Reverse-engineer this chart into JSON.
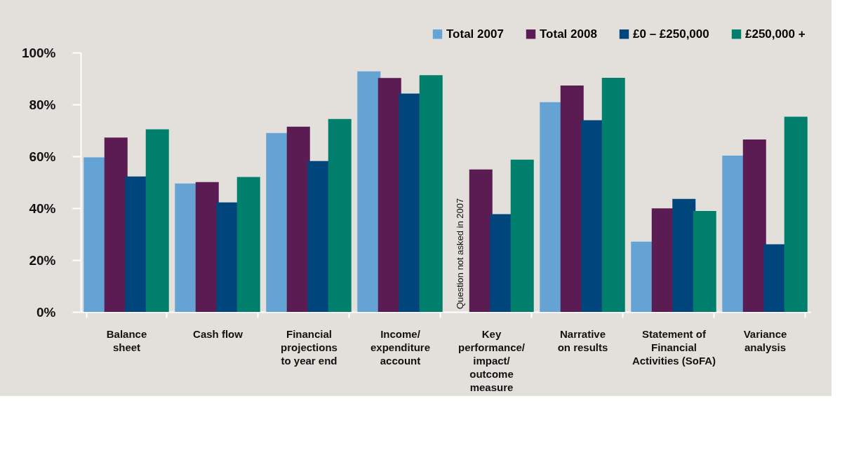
{
  "chart_data": {
    "type": "bar",
    "categories": [
      "Balance\nsheet",
      "Cash flow",
      "Financial\nprojections\nto year end",
      "Income/\nexpenditure\naccount",
      "Key\nperformance/\nimpact/\noutcome\nmeasure",
      "Narrative\non results",
      "Statement of\nFinancial\nActivities (SoFA)",
      "Variance\nanalysis"
    ],
    "series": [
      {
        "name": "Total 2007",
        "color": "#65a3d4",
        "values": [
          59.6,
          49.5,
          69.0,
          92.8,
          null,
          80.9,
          27.1,
          60.3
        ]
      },
      {
        "name": "Total 2008",
        "color": "#5a1c53",
        "values": [
          67.2,
          50.1,
          71.4,
          90.2,
          54.9,
          87.3,
          39.9,
          66.5
        ]
      },
      {
        "name": "£0 – £250,000",
        "color": "#00457c",
        "values": [
          52.2,
          42.2,
          58.2,
          84.2,
          37.7,
          73.9,
          43.6,
          26.1
        ]
      },
      {
        "name": "£250,000 +",
        "color": "#007f6d",
        "values": [
          70.4,
          52.0,
          74.4,
          91.3,
          58.7,
          90.3,
          38.9,
          75.3
        ]
      }
    ],
    "ylim": [
      0,
      100
    ],
    "yticks": [
      {
        "value": 0,
        "label": "0%"
      },
      {
        "value": 20,
        "label": "20%"
      },
      {
        "value": 40,
        "label": "40%"
      },
      {
        "value": 60,
        "label": "60%"
      },
      {
        "value": 80,
        "label": "80%"
      },
      {
        "value": 100,
        "label": "100%"
      }
    ],
    "annotations": [
      {
        "text": "Question not asked in 2007",
        "x": "Key\nperformance/\nimpact/\noutcome\nmeasure",
        "y": 0
      }
    ],
    "grid": false,
    "legend": "top right"
  }
}
